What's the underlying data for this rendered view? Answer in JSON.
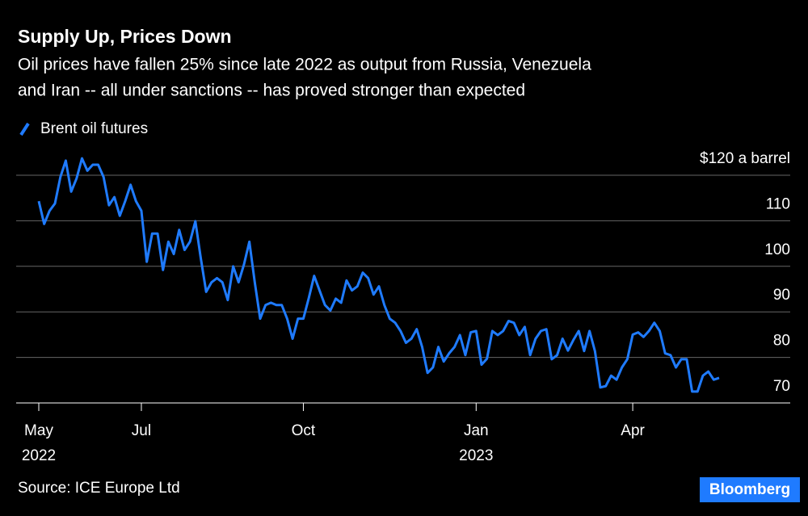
{
  "chart_data": {
    "type": "line",
    "title": "Supply Up, Prices Down",
    "subtitle": [
      "Oil prices have fallen 25% since late 2022 as output from Russia, Venezuela",
      "and Iran -- all under sanctions -- has proved stronger than expected"
    ],
    "source": "Source: ICE Europe Ltd",
    "brand": "Bloomberg",
    "ylim": [
      70,
      124
    ],
    "yticks": [
      70,
      80,
      90,
      100,
      110,
      {
        "value": 120,
        "label": "$120 a barrel"
      }
    ],
    "grid": true,
    "categories": [
      "May 2022",
      null,
      null,
      null,
      null,
      null,
      null,
      null,
      null,
      null,
      null,
      null,
      null,
      null,
      null,
      null,
      null,
      null,
      null,
      "Jul",
      null,
      null,
      null,
      null,
      null,
      null,
      null,
      null,
      null,
      null,
      null,
      null,
      null,
      null,
      null,
      null,
      null,
      null,
      null,
      null,
      null,
      null,
      null,
      null,
      null,
      null,
      null,
      null,
      null,
      "Oct",
      null,
      null,
      null,
      null,
      null,
      null,
      null,
      null,
      null,
      null,
      null,
      null,
      null,
      null,
      null,
      null,
      null,
      null,
      null,
      null,
      null,
      null,
      null,
      null,
      null,
      null,
      null,
      null,
      null,
      null,
      null,
      "Jan 2023",
      null,
      null,
      null,
      null,
      null,
      null,
      null,
      null,
      null,
      null,
      null,
      null,
      null,
      null,
      null,
      null,
      null,
      null,
      null,
      null,
      null,
      null,
      null,
      null,
      null,
      null,
      null,
      null,
      "Apr",
      null,
      null,
      null,
      null,
      null,
      null,
      null,
      null,
      null,
      null,
      null,
      null,
      null,
      null,
      null,
      null
    ],
    "series": [
      {
        "name": "Brent oil futures",
        "color": "#1f7bff",
        "values": [
          114.3,
          109.3,
          112.2,
          113.8,
          119.6,
          123.2,
          116.4,
          119.3,
          123.7,
          121.0,
          122.3,
          122.3,
          119.6,
          113.4,
          115.2,
          111.1,
          114.3,
          117.9,
          114.3,
          112.2,
          101.0,
          107.2,
          107.2,
          99.2,
          105.4,
          102.7,
          108.0,
          103.6,
          105.4,
          109.9,
          101.8,
          94.4,
          96.5,
          97.4,
          96.5,
          92.6,
          100.0,
          96.5,
          100.4,
          105.4,
          96.5,
          88.5,
          91.5,
          92.0,
          91.5,
          91.5,
          88.5,
          84.1,
          88.5,
          88.5,
          93.0,
          97.9,
          94.7,
          91.5,
          90.3,
          92.9,
          92.0,
          96.9,
          94.7,
          95.6,
          98.6,
          97.4,
          93.8,
          95.6,
          91.5,
          88.5,
          87.6,
          85.8,
          83.2,
          84.1,
          86.2,
          82.3,
          76.6,
          77.8,
          82.3,
          79.1,
          80.9,
          82.3,
          84.9,
          80.5,
          85.5,
          85.8,
          78.4,
          79.7,
          85.8,
          84.9,
          85.8,
          88.0,
          87.6,
          84.9,
          86.7,
          80.5,
          84.1,
          85.8,
          86.2,
          79.6,
          80.5,
          84.1,
          81.5,
          83.8,
          85.8,
          81.4,
          85.8,
          81.4,
          73.4,
          73.7,
          76.0,
          75.1,
          77.8,
          79.6,
          85.0,
          85.5,
          84.5,
          85.8,
          87.6,
          85.8,
          80.9,
          80.5,
          77.8,
          79.6,
          79.6,
          72.5,
          72.5,
          76.0,
          76.9,
          75.1,
          75.5
        ]
      }
    ]
  }
}
